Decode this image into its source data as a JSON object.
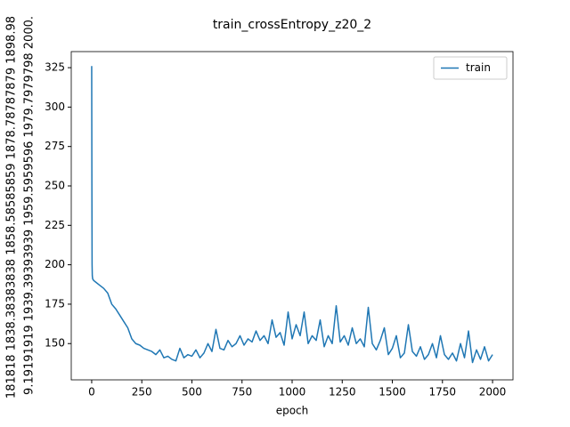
{
  "chart_data": {
    "type": "line",
    "title": "train_crossEntropy_z20_2",
    "xlabel": "epoch",
    "ylabel_lines": [
      "181818  1838.38383838  1858.58585859  1878.78787879  1898.98",
      "9.19191919  1939.39393939  1959.5959596  1979.7979798  2000."
    ],
    "x": [
      0,
      1,
      2,
      3,
      5,
      10,
      20,
      40,
      60,
      80,
      100,
      120,
      140,
      160,
      180,
      200,
      220,
      240,
      260,
      280,
      300,
      320,
      340,
      360,
      380,
      400,
      420,
      440,
      460,
      480,
      500,
      520,
      540,
      560,
      580,
      600,
      620,
      640,
      660,
      680,
      700,
      720,
      740,
      760,
      780,
      800,
      820,
      840,
      860,
      880,
      900,
      920,
      940,
      960,
      980,
      1000,
      1020,
      1040,
      1060,
      1080,
      1100,
      1120,
      1140,
      1160,
      1180,
      1200,
      1220,
      1240,
      1260,
      1280,
      1300,
      1320,
      1340,
      1360,
      1380,
      1400,
      1420,
      1440,
      1460,
      1480,
      1500,
      1520,
      1540,
      1560,
      1580,
      1600,
      1620,
      1640,
      1660,
      1680,
      1700,
      1720,
      1740,
      1760,
      1780,
      1800,
      1820,
      1840,
      1860,
      1880,
      1900,
      1920,
      1940,
      1960,
      1980,
      2000
    ],
    "series": [
      {
        "name": "train",
        "color": "#1f77b4",
        "values": [
          326,
          250,
          200,
          193,
          191,
          190,
          189,
          187,
          185,
          182,
          175,
          172,
          168,
          164,
          160,
          153,
          150,
          149,
          147,
          146,
          145,
          143,
          146,
          141,
          142,
          140,
          139,
          147,
          141,
          143,
          142,
          146,
          141,
          144,
          150,
          145,
          159,
          147,
          146,
          152,
          148,
          150,
          155,
          149,
          153,
          151,
          158,
          152,
          155,
          150,
          165,
          154,
          157,
          149,
          170,
          153,
          162,
          155,
          170,
          150,
          155,
          152,
          165,
          148,
          155,
          150,
          174,
          151,
          155,
          149,
          160,
          150,
          153,
          148,
          173,
          150,
          146,
          152,
          160,
          143,
          147,
          155,
          141,
          144,
          162,
          145,
          142,
          148,
          140,
          143,
          150,
          141,
          155,
          143,
          140,
          144,
          139,
          150,
          141,
          158,
          138,
          146,
          140,
          148,
          139,
          143
        ]
      }
    ],
    "xlim": [
      -102,
      2102
    ],
    "ylim": [
      127,
      335.2
    ],
    "xticks": [
      0,
      250,
      500,
      750,
      1000,
      1250,
      1500,
      1750,
      2000
    ],
    "yticks": [
      150,
      175,
      200,
      225,
      250,
      275,
      300,
      325
    ],
    "legend": "upper right"
  }
}
